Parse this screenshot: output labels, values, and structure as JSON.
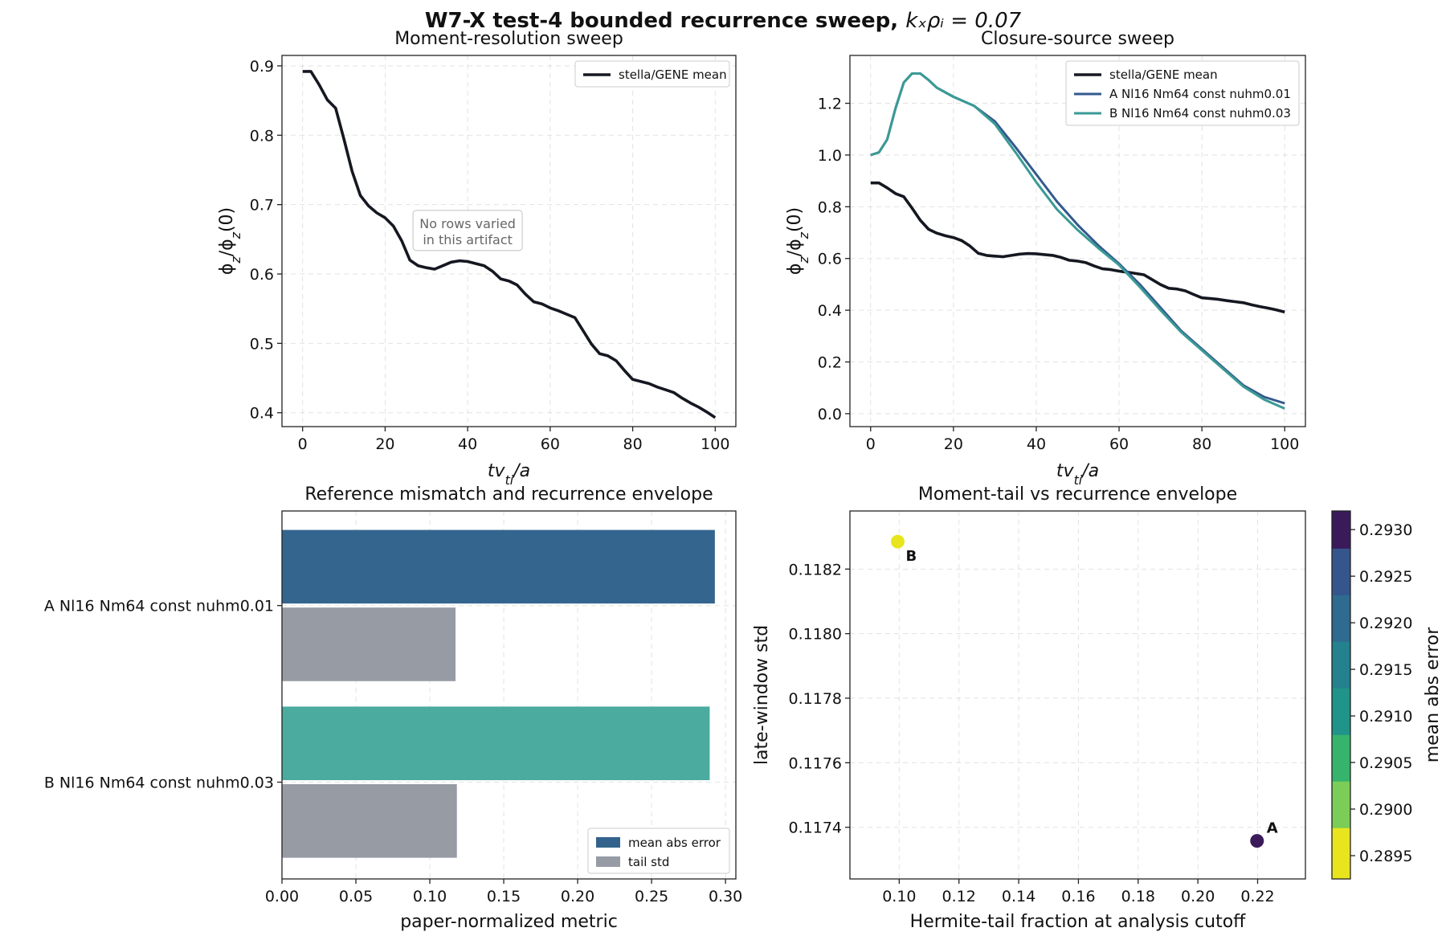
{
  "figure": {
    "suptitle_text": "W7-X test-4 bounded recurrence sweep, ",
    "suptitle_math": "kₓρᵢ = 0.07"
  },
  "chart_data": [
    {
      "id": "moment",
      "type": "line",
      "title": "Moment-resolution sweep",
      "xlabel": "tv_ti/a",
      "ylabel": "ϕ_z/ϕ_z(0)",
      "xlim": [
        -5,
        105
      ],
      "ylim": [
        0.38,
        0.915
      ],
      "xticks": [
        0,
        20,
        40,
        60,
        80,
        100
      ],
      "yticks": [
        0.4,
        0.5,
        0.6,
        0.7,
        0.8,
        0.9
      ],
      "ytick_labels": [
        "0.4",
        "0.5",
        "0.6",
        "0.7",
        "0.8",
        "0.9"
      ],
      "grid": true,
      "legend_position": "upper right",
      "note": "No rows varied\nin this artifact",
      "series": [
        {
          "name": "stella/GENE mean",
          "color": "#151821",
          "x": [
            0,
            2,
            4,
            6,
            8,
            10,
            12,
            14,
            16,
            18,
            20,
            22,
            24,
            26,
            28,
            30,
            32,
            34,
            36,
            38,
            40,
            42,
            44,
            46,
            48,
            50,
            52,
            54,
            56,
            58,
            60,
            62,
            64,
            66,
            68,
            70,
            72,
            74,
            76,
            78,
            80,
            82,
            84,
            86,
            88,
            90,
            92,
            94,
            96,
            98,
            100
          ],
          "y": [
            0.892,
            0.892,
            0.873,
            0.851,
            0.839,
            0.795,
            0.748,
            0.713,
            0.698,
            0.688,
            0.681,
            0.669,
            0.648,
            0.62,
            0.612,
            0.609,
            0.607,
            0.612,
            0.617,
            0.619,
            0.618,
            0.615,
            0.612,
            0.604,
            0.593,
            0.59,
            0.584,
            0.571,
            0.56,
            0.557,
            0.551,
            0.547,
            0.542,
            0.537,
            0.518,
            0.499,
            0.485,
            0.482,
            0.475,
            0.461,
            0.448,
            0.445,
            0.442,
            0.437,
            0.433,
            0.429,
            0.421,
            0.414,
            0.408,
            0.401,
            0.393
          ]
        }
      ]
    },
    {
      "id": "closure",
      "type": "line",
      "title": "Closure-source sweep",
      "xlabel": "tv_ti/a",
      "ylabel": "ϕ_z/ϕ_z(0)",
      "xlim": [
        -5,
        105
      ],
      "ylim": [
        -0.05,
        1.385
      ],
      "xticks": [
        0,
        20,
        40,
        60,
        80,
        100
      ],
      "yticks": [
        0.0,
        0.2,
        0.4,
        0.6,
        0.8,
        1.0,
        1.2
      ],
      "ytick_labels": [
        "0.0",
        "0.2",
        "0.4",
        "0.6",
        "0.8",
        "1.0",
        "1.2"
      ],
      "grid": true,
      "legend_position": "upper right",
      "series": [
        {
          "name": "stella/GENE mean",
          "color": "#151821",
          "x": [
            0,
            2,
            4,
            6,
            8,
            10,
            12,
            14,
            16,
            18,
            20,
            22,
            24,
            26,
            28,
            30,
            32,
            34,
            36,
            38,
            40,
            42,
            44,
            46,
            48,
            50,
            52,
            54,
            56,
            58,
            60,
            62,
            64,
            66,
            68,
            70,
            72,
            74,
            76,
            78,
            80,
            82,
            84,
            86,
            88,
            90,
            92,
            94,
            96,
            98,
            100
          ],
          "y": [
            0.892,
            0.892,
            0.873,
            0.851,
            0.839,
            0.795,
            0.748,
            0.713,
            0.698,
            0.688,
            0.681,
            0.669,
            0.648,
            0.62,
            0.612,
            0.609,
            0.607,
            0.612,
            0.617,
            0.619,
            0.618,
            0.615,
            0.612,
            0.604,
            0.593,
            0.59,
            0.584,
            0.571,
            0.56,
            0.557,
            0.551,
            0.547,
            0.542,
            0.537,
            0.518,
            0.499,
            0.485,
            0.482,
            0.475,
            0.461,
            0.448,
            0.445,
            0.442,
            0.437,
            0.433,
            0.429,
            0.421,
            0.414,
            0.408,
            0.401,
            0.393
          ]
        },
        {
          "name": "A  Nl16 Nm64 const nuhm0.01",
          "color": "#33598e",
          "x": [
            0,
            2,
            4,
            6,
            8,
            10,
            12,
            14,
            16,
            20,
            25,
            30,
            35,
            40,
            45,
            50,
            55,
            60,
            65,
            70,
            75,
            80,
            85,
            90,
            95,
            100
          ],
          "y": [
            1.0,
            1.01,
            1.06,
            1.18,
            1.28,
            1.315,
            1.315,
            1.29,
            1.26,
            1.225,
            1.19,
            1.13,
            1.03,
            0.925,
            0.82,
            0.73,
            0.65,
            0.58,
            0.5,
            0.41,
            0.32,
            0.25,
            0.18,
            0.11,
            0.065,
            0.04
          ]
        },
        {
          "name": "B  Nl16 Nm64 const nuhm0.03",
          "color": "#3a9a95",
          "x": [
            0,
            2,
            4,
            6,
            8,
            10,
            12,
            14,
            16,
            20,
            25,
            30,
            35,
            40,
            45,
            50,
            55,
            60,
            65,
            70,
            75,
            80,
            85,
            90,
            95,
            100
          ],
          "y": [
            1.0,
            1.01,
            1.06,
            1.18,
            1.28,
            1.315,
            1.315,
            1.29,
            1.26,
            1.225,
            1.19,
            1.12,
            1.01,
            0.895,
            0.79,
            0.71,
            0.64,
            0.575,
            0.49,
            0.4,
            0.315,
            0.245,
            0.175,
            0.105,
            0.055,
            0.02
          ]
        }
      ]
    },
    {
      "id": "mismatch",
      "type": "bar",
      "orientation": "horizontal",
      "title": "Reference mismatch and recurrence envelope",
      "xlabel": "paper-normalized metric",
      "xlim": [
        0,
        0.307
      ],
      "xticks": [
        0.0,
        0.05,
        0.1,
        0.15,
        0.2,
        0.25,
        0.3
      ],
      "xtick_labels": [
        "0.00",
        "0.05",
        "0.10",
        "0.15",
        "0.20",
        "0.25",
        "0.30"
      ],
      "grid": true,
      "legend_position": "lower right",
      "categories": [
        "A  Nl16 Nm64 const nuhm0.01",
        "B  Nl16 Nm64 const nuhm0.03"
      ],
      "series": [
        {
          "name": "mean abs error",
          "legend_color": "#33638d",
          "colors": [
            "#33658e",
            "#4aab9e"
          ],
          "values": [
            0.2928,
            0.2893
          ]
        },
        {
          "name": "tail std",
          "legend_color": "#969ba4",
          "colors": [
            "#969ba4",
            "#969ba4"
          ],
          "values": [
            0.1174,
            0.1183
          ]
        }
      ]
    },
    {
      "id": "tail",
      "type": "scatter",
      "title": "Moment-tail vs recurrence envelope",
      "xlabel": "Hermite-tail fraction at analysis cutoff",
      "ylabel": "late-window std",
      "xlim": [
        0.0835,
        0.236
      ],
      "ylim": [
        0.11724,
        0.11838
      ],
      "xticks": [
        0.1,
        0.12,
        0.14,
        0.16,
        0.18,
        0.2,
        0.22
      ],
      "xtick_labels": [
        "0.10",
        "0.12",
        "0.14",
        "0.16",
        "0.18",
        "0.20",
        "0.22"
      ],
      "yticks": [
        0.1174,
        0.1176,
        0.1178,
        0.118,
        0.1182
      ],
      "ytick_labels": [
        "0.1174",
        "0.1176",
        "0.1178",
        "0.1180",
        "0.1182"
      ],
      "grid": true,
      "points": [
        {
          "label": "A",
          "x": 0.2198,
          "y": 0.117358,
          "color": "#3b1a5a"
        },
        {
          "label": "B",
          "x": 0.0995,
          "y": 0.118285,
          "color": "#e8e51f"
        }
      ],
      "colorbar": {
        "label": "mean abs error",
        "range": [
          0.28925,
          0.2932
        ],
        "ticks": [
          0.2895,
          0.29,
          0.2905,
          0.291,
          0.2915,
          0.292,
          0.2925,
          0.293
        ],
        "tick_labels": [
          "0.2895",
          "0.2900",
          "0.2905",
          "0.2910",
          "0.2915",
          "0.2920",
          "0.2925",
          "0.2930"
        ],
        "levels": [
          0.28925,
          0.2898,
          0.2903,
          0.2908,
          0.2913,
          0.2918,
          0.2923,
          0.2928,
          0.2932
        ],
        "colors": [
          "#e8e51f",
          "#7bcd58",
          "#37b46b",
          "#20938a",
          "#24818e",
          "#2e6b8e",
          "#35568c",
          "#3b1a5a"
        ]
      }
    }
  ]
}
